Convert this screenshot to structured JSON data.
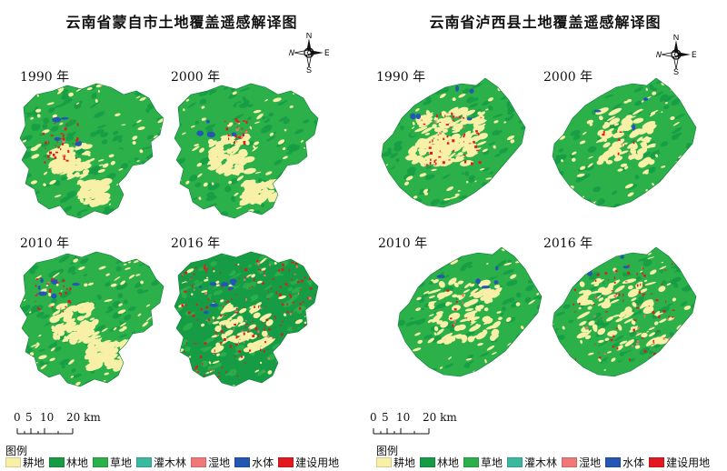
{
  "colors": {
    "cropland": "#f7f0a6",
    "forest": "#169c45",
    "grassland": "#2bb04a",
    "shrub": "#3ab8a0",
    "wetland": "#f07878",
    "water": "#2456b4",
    "builtup": "#e3191f"
  },
  "panels": [
    {
      "title": "云南省蒙自市土地覆盖遥感解译图",
      "compass": {
        "n": "N",
        "s": "S",
        "e": "E",
        "w": "W"
      },
      "years": [
        "1990 年",
        "2000 年",
        "2010 年",
        "2016 年"
      ],
      "scale": {
        "ticks": [
          "0",
          "5",
          "10",
          "20 km"
        ]
      },
      "legend": {
        "title": "图例",
        "items": [
          "耕地",
          "林地",
          "草地",
          "灌木林",
          "湿地",
          "水体",
          "建设用地"
        ]
      }
    },
    {
      "title": "云南省泸西县土地覆盖遥感解译图",
      "compass": {
        "n": "N",
        "s": "S",
        "e": "E",
        "w": "W"
      },
      "years": [
        "1990 年",
        "2000 年",
        "2010 年",
        "2016 年"
      ],
      "scale": {
        "ticks": [
          "0",
          "5",
          "10",
          "20 km"
        ]
      },
      "legend": {
        "title": "图例",
        "items": [
          "耕地",
          "林地",
          "草地",
          "灌木林",
          "湿地",
          "水体",
          "建设用地"
        ]
      }
    }
  ]
}
